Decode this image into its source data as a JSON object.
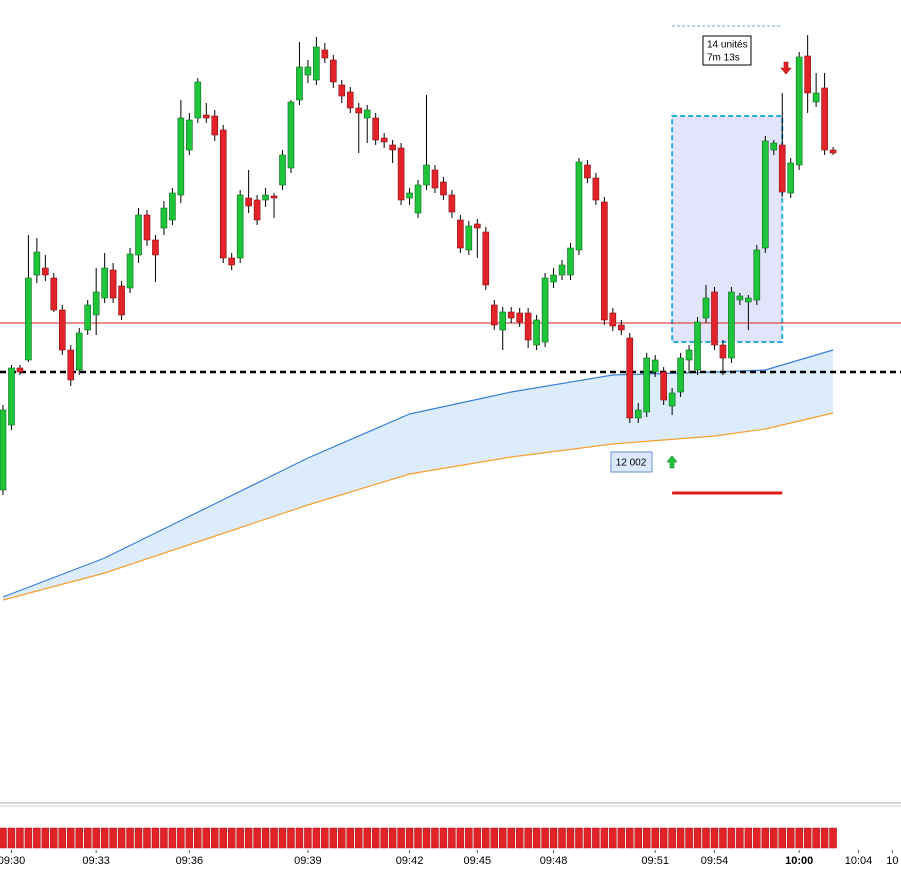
{
  "chart_data": {
    "type": "candlestick",
    "categories": [
      null,
      "09:30",
      null,
      null,
      null,
      null,
      null,
      null,
      null,
      null,
      null,
      "09:33",
      null,
      null,
      null,
      null,
      null,
      null,
      null,
      null,
      null,
      null,
      "09:36",
      null,
      null,
      null,
      null,
      null,
      null,
      null,
      null,
      null,
      null,
      null,
      null,
      null,
      "09:39",
      null,
      null,
      null,
      null,
      null,
      null,
      null,
      null,
      null,
      null,
      null,
      "09:42",
      null,
      null,
      null,
      null,
      null,
      null,
      null,
      "09:45",
      null,
      null,
      null,
      null,
      null,
      null,
      null,
      null,
      "09:48",
      null,
      null,
      null,
      null,
      null,
      null,
      null,
      null,
      null,
      null,
      null,
      "09:51",
      null,
      null,
      null,
      null,
      null,
      null,
      "09:54",
      null,
      null,
      null,
      null,
      null,
      null,
      null,
      null,
      null,
      "10:00",
      null,
      null,
      null,
      null,
      null,
      null,
      "10:04",
      null,
      null,
      null,
      "10"
    ],
    "highlight_category": 94,
    "open": [
      313,
      378,
      435,
      443,
      528,
      535,
      525,
      493,
      453,
      433,
      473,
      488,
      505,
      533,
      517,
      515,
      548,
      588,
      563,
      575,
      583,
      608,
      653,
      685,
      688,
      687,
      673,
      545,
      545,
      605,
      603,
      603,
      607,
      618,
      635,
      703,
      728,
      723,
      753,
      743,
      718,
      711,
      695,
      685,
      685,
      665,
      658,
      655,
      605,
      590,
      618,
      633,
      621,
      608,
      583,
      553,
      579,
      571,
      498,
      473,
      491,
      490,
      490,
      458,
      461,
      521,
      528,
      528,
      553,
      638,
      625,
      601,
      490,
      478,
      465,
      385,
      391,
      431,
      431,
      397,
      411,
      443,
      433,
      485,
      511,
      458,
      445,
      503,
      501,
      503,
      555,
      653,
      658,
      610,
      638,
      747,
      701,
      715,
      653,
      null,
      null,
      null,
      null,
      null,
      null,
      null
    ],
    "high": [
      398,
      438,
      438,
      568,
      565,
      548,
      530,
      498,
      458,
      475,
      503,
      535,
      550,
      540,
      522,
      555,
      595,
      593,
      568,
      602,
      615,
      703,
      690,
      725,
      700,
      693,
      678,
      550,
      613,
      633,
      608,
      615,
      610,
      653,
      703,
      761,
      743,
      766,
      760,
      748,
      723,
      716,
      700,
      698,
      690,
      670,
      663,
      660,
      615,
      623,
      708,
      638,
      626,
      613,
      588,
      582,
      584,
      576,
      503,
      496,
      496,
      495,
      495,
      488,
      530,
      535,
      543,
      560,
      645,
      643,
      630,
      606,
      495,
      483,
      470,
      400,
      450,
      448,
      436,
      415,
      450,
      458,
      486,
      518,
      516,
      463,
      516,
      510,
      508,
      558,
      667,
      663,
      710,
      645,
      751,
      768,
      730,
      730,
      656,
      null,
      null,
      null,
      null,
      null,
      null,
      null
    ],
    "low": [
      308,
      373,
      428,
      441,
      520,
      522,
      491,
      448,
      417,
      428,
      468,
      468,
      500,
      500,
      483,
      510,
      540,
      557,
      521,
      568,
      578,
      600,
      648,
      680,
      680,
      662,
      540,
      533,
      540,
      590,
      578,
      596,
      585,
      613,
      630,
      698,
      720,
      718,
      740,
      715,
      700,
      690,
      650,
      660,
      658,
      655,
      640,
      598,
      598,
      585,
      613,
      610,
      603,
      585,
      550,
      548,
      545,
      513,
      473,
      453,
      480,
      476,
      455,
      453,
      456,
      515,
      523,
      523,
      548,
      620,
      598,
      478,
      472,
      468,
      380,
      380,
      386,
      426,
      398,
      388,
      406,
      430,
      428,
      480,
      453,
      428,
      440,
      498,
      473,
      498,
      550,
      648,
      606,
      605,
      633,
      690,
      696,
      648,
      648,
      null,
      null,
      null,
      null,
      null,
      null,
      null
    ],
    "close": [
      393,
      435,
      431,
      525,
      551,
      528,
      493,
      453,
      423,
      470,
      498,
      511,
      535,
      505,
      488,
      549,
      588,
      563,
      548,
      595,
      610,
      685,
      683,
      721,
      685,
      668,
      545,
      538,
      608,
      597,
      583,
      608,
      605,
      648,
      701,
      736,
      736,
      756,
      745,
      721,
      707,
      695,
      690,
      693,
      663,
      661,
      653,
      603,
      610,
      618,
      638,
      615,
      608,
      591,
      555,
      577,
      575,
      518,
      478,
      491,
      485,
      481,
      463,
      483,
      525,
      528,
      538,
      555,
      641,
      625,
      603,
      483,
      477,
      473,
      385,
      393,
      445,
      443,
      403,
      410,
      445,
      453,
      481,
      505,
      458,
      445,
      511,
      507,
      505,
      553,
      662,
      660,
      611,
      640,
      746,
      710,
      710,
      653,
      650,
      null,
      null,
      null,
      null,
      null,
      null,
      null
    ],
    "up_color": "#1ec53a",
    "down_color": "#e3232a",
    "ylim": [
      0,
      803
    ],
    "bands": {
      "x": [
        0,
        12,
        24,
        36,
        48,
        60,
        72,
        84,
        90,
        98
      ],
      "upper": [
        206,
        245,
        295,
        345,
        389,
        411,
        428,
        431,
        433,
        453
      ],
      "upper_color": "#3a7fd8",
      "lower": [
        203,
        230,
        264,
        298,
        329,
        346,
        359,
        367,
        374,
        390
      ],
      "lower_color": "#f5a030",
      "fill": "#dcecfb"
    },
    "levels": [
      {
        "value": 480,
        "color": "#d62020",
        "style": "solid"
      },
      {
        "value": 431,
        "color": "#000000",
        "style": "dashed"
      }
    ],
    "range_box": {
      "x": [
        79,
        92
      ],
      "y": [
        461,
        687
      ],
      "top": 777,
      "stop": 310
    },
    "annotations": [
      "14 unités",
      "7m 13s",
      "12 002"
    ]
  }
}
